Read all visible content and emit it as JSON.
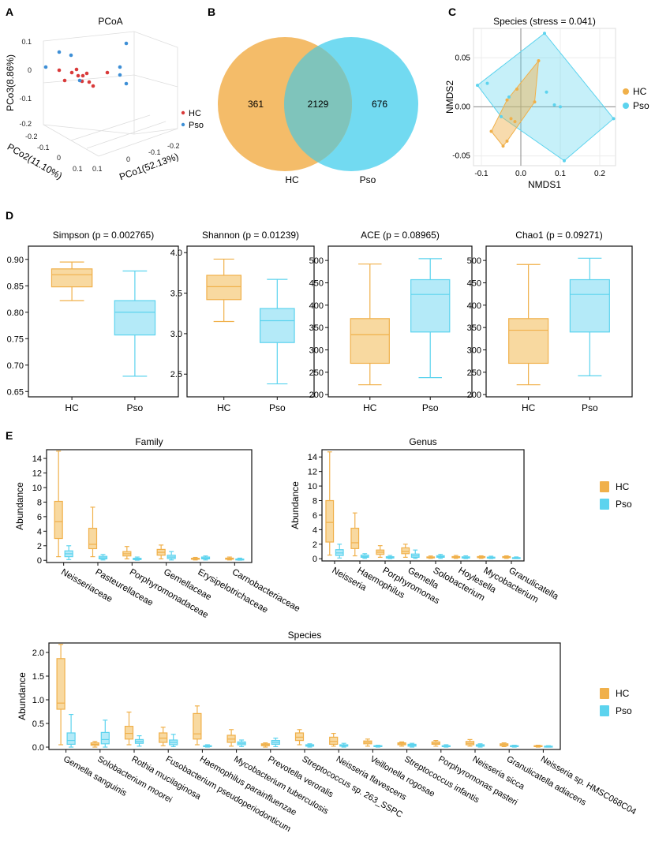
{
  "colors": {
    "hc": "#F0B04A",
    "hc_fill": "#F8D9A0",
    "pso": "#5CD3EE",
    "pso_fill": "#B4EAF8",
    "hc_point": "#D93A3A",
    "pso_point": "#3E8FD6"
  },
  "panel_labels": [
    "A",
    "B",
    "C",
    "D",
    "E"
  ],
  "chart_data": [
    {
      "id": "A",
      "type": "scatter",
      "title": "PCoA",
      "axes": {
        "x": "PCo1(52.13%)",
        "y": "PCo2(11.10%)",
        "z": "PCo3(8.86%)"
      },
      "z_ticks": [
        "0.1",
        "0",
        "-0.1",
        "-0.2"
      ],
      "y_ticks": [
        "-0.2",
        "-0.1",
        "0",
        "0.1"
      ],
      "x_ticks": [
        "0.1",
        "0",
        "-0.1",
        "-0.2"
      ],
      "legend": [
        "HC",
        "Pso"
      ]
    },
    {
      "id": "B",
      "type": "venn",
      "sets": [
        "HC",
        "Pso"
      ],
      "only_hc": "361",
      "shared": "2129",
      "only_pso": "676"
    },
    {
      "id": "C",
      "type": "scatter",
      "title": "Species (stress = 0.041)",
      "xlabel": "NMDS1",
      "ylabel": "NMDS2",
      "xlim": [
        -0.12,
        0.24
      ],
      "ylim": [
        -0.06,
        0.08
      ],
      "x_ticks": [
        "-0.1",
        "0.0",
        "0.1",
        "0.2"
      ],
      "y_ticks": [
        "0.05",
        "0.00",
        "-0.05"
      ],
      "legend": [
        "HC",
        "Pso"
      ],
      "series": [
        {
          "name": "HC",
          "points": [
            [
              -0.075,
              -0.025
            ],
            [
              -0.045,
              -0.04
            ],
            [
              -0.035,
              -0.035
            ],
            [
              -0.025,
              -0.012
            ],
            [
              -0.015,
              -0.015
            ],
            [
              -0.035,
              0.007
            ],
            [
              -0.01,
              0.018
            ],
            [
              0.045,
              0.047
            ],
            [
              0.035,
              0.005
            ]
          ]
        },
        {
          "name": "Pso",
          "points": [
            [
              -0.11,
              0.022
            ],
            [
              -0.085,
              0.024
            ],
            [
              -0.05,
              -0.01
            ],
            [
              0.06,
              0.075
            ],
            [
              0.065,
              0.015
            ],
            [
              0.085,
              0.002
            ],
            [
              0.235,
              -0.012
            ],
            [
              0.11,
              -0.055
            ],
            [
              0.1,
              0.0
            ],
            [
              -0.03,
              0.01
            ]
          ]
        }
      ]
    },
    {
      "id": "D1",
      "type": "boxplot",
      "title": "Simpson (p = 0.002765)",
      "categories": [
        "HC",
        "Pso"
      ],
      "ylim": [
        0.64,
        0.925
      ],
      "y_ticks": [
        0.65,
        0.7,
        0.75,
        0.8,
        0.85,
        0.9
      ],
      "decimals": 2,
      "boxes": [
        {
          "name": "HC",
          "min": 0.822,
          "q1": 0.848,
          "median": 0.871,
          "q3": 0.882,
          "max": 0.895
        },
        {
          "name": "Pso",
          "min": 0.679,
          "q1": 0.757,
          "median": 0.8,
          "q3": 0.822,
          "max": 0.878
        }
      ]
    },
    {
      "id": "D2",
      "type": "boxplot",
      "title": "Shannon (p = 0.01239)",
      "categories": [
        "HC",
        "Pso"
      ],
      "ylim": [
        2.22,
        4.08
      ],
      "y_ticks": [
        2.5,
        3.0,
        3.5,
        4.0
      ],
      "decimals": 1,
      "boxes": [
        {
          "name": "HC",
          "min": 3.15,
          "q1": 3.42,
          "median": 3.58,
          "q3": 3.72,
          "max": 3.92
        },
        {
          "name": "Pso",
          "min": 2.38,
          "q1": 2.89,
          "median": 3.16,
          "q3": 3.31,
          "max": 3.67
        }
      ]
    },
    {
      "id": "D3",
      "type": "boxplot",
      "title": "ACE (p = 0.08965)",
      "categories": [
        "HC",
        "Pso"
      ],
      "ylim": [
        195,
        532
      ],
      "y_ticks": [
        200,
        250,
        300,
        350,
        400,
        450,
        500
      ],
      "decimals": 0,
      "boxes": [
        {
          "name": "HC",
          "min": 222,
          "q1": 270,
          "median": 334,
          "q3": 370,
          "max": 492
        },
        {
          "name": "Pso",
          "min": 238,
          "q1": 340,
          "median": 424,
          "q3": 457,
          "max": 504
        }
      ]
    },
    {
      "id": "D4",
      "type": "boxplot",
      "title": "Chao1 (p = 0.09271)",
      "categories": [
        "HC",
        "Pso"
      ],
      "ylim": [
        195,
        532
      ],
      "y_ticks": [
        200,
        250,
        300,
        350,
        400,
        450,
        500
      ],
      "decimals": 0,
      "boxes": [
        {
          "name": "HC",
          "min": 222,
          "q1": 270,
          "median": 344,
          "q3": 370,
          "max": 491
        },
        {
          "name": "Pso",
          "min": 242,
          "q1": 340,
          "median": 424,
          "q3": 457,
          "max": 505
        }
      ]
    },
    {
      "id": "E1",
      "type": "boxplot",
      "title": "Family",
      "ylabel": "Abundance",
      "ylim": [
        -0.3,
        15.2
      ],
      "y_ticks": [
        0,
        2,
        4,
        6,
        8,
        10,
        12,
        14
      ],
      "decimals": 0,
      "legend": [
        "HC",
        "Pso"
      ],
      "categories": [
        "Neisseriaceae",
        "Pasteurellaceae",
        "Porphyromonadaceae",
        "Gemellaceae",
        "Erysipelotrichaceae",
        "Carnobacteriaceae"
      ],
      "groups": [
        {
          "HC": [
            0.5,
            3.0,
            5.3,
            8.1,
            15.0
          ],
          "Pso": [
            0.1,
            0.5,
            0.9,
            1.3,
            2.0
          ]
        },
        {
          "HC": [
            0.5,
            1.6,
            2.2,
            4.4,
            7.3
          ],
          "Pso": [
            0.05,
            0.2,
            0.35,
            0.55,
            0.8
          ]
        },
        {
          "HC": [
            0.2,
            0.6,
            0.9,
            1.2,
            1.9
          ],
          "Pso": [
            0.02,
            0.1,
            0.18,
            0.28,
            0.45
          ]
        },
        {
          "HC": [
            0.2,
            0.7,
            1.1,
            1.5,
            2.1
          ],
          "Pso": [
            0.05,
            0.25,
            0.45,
            0.7,
            1.2
          ]
        },
        {
          "HC": [
            0.05,
            0.15,
            0.2,
            0.28,
            0.4
          ],
          "Pso": [
            0.05,
            0.2,
            0.3,
            0.45,
            0.6
          ]
        },
        {
          "HC": [
            0.05,
            0.15,
            0.22,
            0.3,
            0.45
          ],
          "Pso": [
            0.02,
            0.08,
            0.12,
            0.18,
            0.3
          ]
        }
      ]
    },
    {
      "id": "E2",
      "type": "boxplot",
      "title": "Genus",
      "ylabel": "Abundance",
      "ylim": [
        -0.3,
        15.0
      ],
      "y_ticks": [
        0,
        2,
        4,
        6,
        8,
        10,
        12,
        14
      ],
      "decimals": 0,
      "legend": [
        "HC",
        "Pso"
      ],
      "categories": [
        "Neisseria",
        "Haemophilus",
        "Porphyromonas",
        "Gemella",
        "Solobacterium",
        "Hoylesella",
        "Mycobacterium",
        "Granulicatella"
      ],
      "groups": [
        {
          "HC": [
            0.5,
            2.3,
            5.0,
            8.0,
            14.7
          ],
          "Pso": [
            0.1,
            0.45,
            0.8,
            1.25,
            2.0
          ]
        },
        {
          "HC": [
            0.4,
            1.4,
            2.2,
            4.2,
            6.3
          ],
          "Pso": [
            0.05,
            0.2,
            0.3,
            0.5,
            0.7
          ]
        },
        {
          "HC": [
            0.2,
            0.6,
            0.9,
            1.2,
            1.8
          ],
          "Pso": [
            0.02,
            0.1,
            0.18,
            0.28,
            0.45
          ]
        },
        {
          "HC": [
            0.2,
            0.7,
            1.0,
            1.5,
            2.0
          ],
          "Pso": [
            0.05,
            0.2,
            0.4,
            0.65,
            1.2
          ]
        },
        {
          "HC": [
            0.05,
            0.12,
            0.18,
            0.25,
            0.38
          ],
          "Pso": [
            0.05,
            0.2,
            0.3,
            0.42,
            0.6
          ]
        },
        {
          "HC": [
            0.05,
            0.15,
            0.22,
            0.3,
            0.45
          ],
          "Pso": [
            0.02,
            0.1,
            0.18,
            0.26,
            0.4
          ]
        },
        {
          "HC": [
            0.05,
            0.15,
            0.22,
            0.3,
            0.4
          ],
          "Pso": [
            0.02,
            0.08,
            0.15,
            0.22,
            0.35
          ]
        },
        {
          "HC": [
            0.05,
            0.15,
            0.22,
            0.3,
            0.4
          ],
          "Pso": [
            0.02,
            0.06,
            0.1,
            0.15,
            0.25
          ]
        }
      ]
    },
    {
      "id": "E3",
      "type": "boxplot",
      "title": "Species",
      "ylabel": "Abundance",
      "ylim": [
        -0.05,
        2.2
      ],
      "y_ticks": [
        0.0,
        0.5,
        1.0,
        1.5,
        2.0
      ],
      "decimals": 1,
      "legend": [
        "HC",
        "Pso"
      ],
      "categories": [
        "Gemella sanguinis",
        "Solobacterium moorei",
        "Rothia mucilaginosa",
        "Fusobacterium pseudoperiodonticum",
        "Haemophilus parainfluenzae",
        "Mycobacterium tuberculosis",
        "Prevotella veroralis",
        "Streptococcus sp. 263_SSPC",
        "Neisseria flavescens",
        "Veillonella rogosae",
        "Streptococcus infantis",
        "Porphyromonas pasteri",
        "Neisseria sicca",
        "Granulicatella adiacens",
        "Neisseria sp. HMSC068C04"
      ],
      "groups": [
        {
          "HC": [
            0.05,
            0.8,
            0.93,
            1.87,
            2.17
          ],
          "Pso": [
            0.0,
            0.06,
            0.14,
            0.3,
            0.69
          ]
        },
        {
          "HC": [
            0.0,
            0.04,
            0.06,
            0.09,
            0.12
          ],
          "Pso": [
            0.0,
            0.07,
            0.16,
            0.31,
            0.57
          ]
        },
        {
          "HC": [
            0.05,
            0.17,
            0.29,
            0.44,
            0.74
          ],
          "Pso": [
            0.02,
            0.08,
            0.12,
            0.16,
            0.24
          ]
        },
        {
          "HC": [
            0.03,
            0.1,
            0.19,
            0.3,
            0.42
          ],
          "Pso": [
            0.01,
            0.05,
            0.1,
            0.15,
            0.27
          ]
        },
        {
          "HC": [
            0.05,
            0.17,
            0.28,
            0.71,
            0.87
          ],
          "Pso": [
            0.0,
            0.01,
            0.02,
            0.03,
            0.05
          ]
        },
        {
          "HC": [
            0.02,
            0.1,
            0.17,
            0.25,
            0.37
          ],
          "Pso": [
            0.01,
            0.05,
            0.08,
            0.11,
            0.15
          ]
        },
        {
          "HC": [
            0.0,
            0.03,
            0.05,
            0.07,
            0.09
          ],
          "Pso": [
            0.01,
            0.06,
            0.1,
            0.14,
            0.19
          ]
        },
        {
          "HC": [
            0.05,
            0.14,
            0.21,
            0.3,
            0.37
          ],
          "Pso": [
            0.0,
            0.02,
            0.03,
            0.05,
            0.07
          ]
        },
        {
          "HC": [
            0.02,
            0.06,
            0.12,
            0.21,
            0.29
          ],
          "Pso": [
            0.0,
            0.02,
            0.03,
            0.05,
            0.08
          ]
        },
        {
          "HC": [
            0.02,
            0.07,
            0.1,
            0.13,
            0.17
          ],
          "Pso": [
            0.0,
            0.01,
            0.02,
            0.03,
            0.04
          ]
        },
        {
          "HC": [
            0.02,
            0.05,
            0.07,
            0.09,
            0.11
          ],
          "Pso": [
            0.0,
            0.02,
            0.04,
            0.06,
            0.08
          ]
        },
        {
          "HC": [
            0.02,
            0.06,
            0.08,
            0.11,
            0.14
          ],
          "Pso": [
            0.0,
            0.01,
            0.02,
            0.03,
            0.05
          ]
        },
        {
          "HC": [
            0.02,
            0.05,
            0.08,
            0.12,
            0.16
          ],
          "Pso": [
            0.0,
            0.02,
            0.03,
            0.05,
            0.07
          ]
        },
        {
          "HC": [
            0.01,
            0.03,
            0.05,
            0.07,
            0.09
          ],
          "Pso": [
            0.0,
            0.01,
            0.02,
            0.03,
            0.04
          ]
        },
        {
          "HC": [
            0.0,
            0.01,
            0.02,
            0.03,
            0.04
          ],
          "Pso": [
            0.0,
            0.01,
            0.01,
            0.02,
            0.03
          ]
        }
      ]
    }
  ]
}
